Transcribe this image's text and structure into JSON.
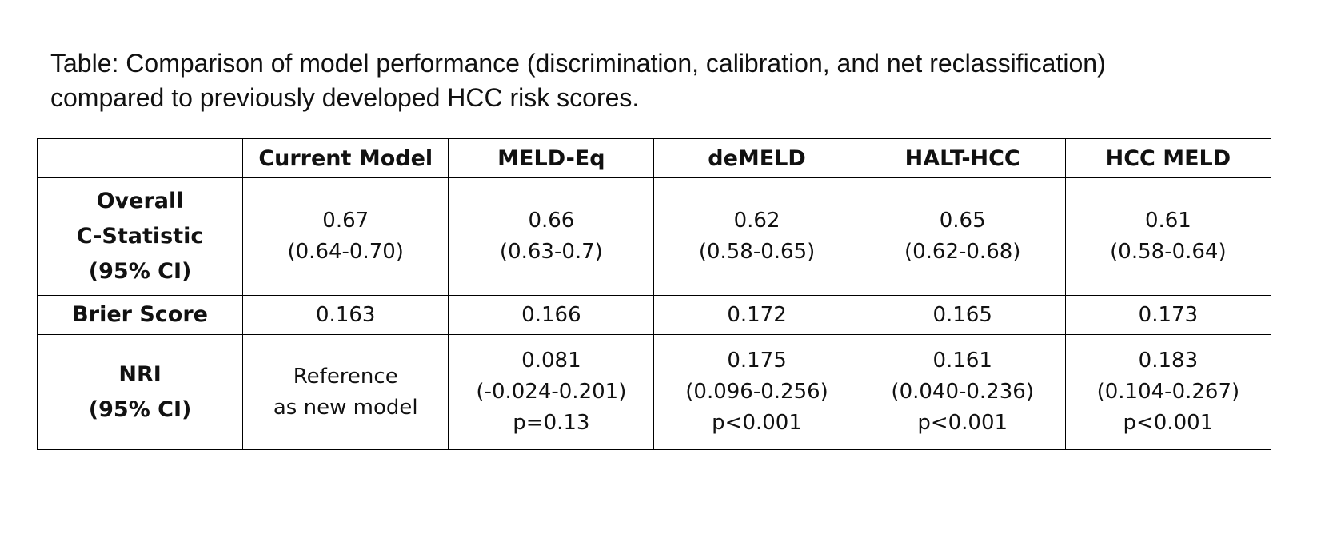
{
  "caption": {
    "line1": "Table: Comparison of model performance (discrimination, calibration, and net reclassification)",
    "line2": "compared to previously developed HCC risk scores."
  },
  "table": {
    "headers": [
      "",
      "Current Model",
      "MELD-Eq",
      "deMELD",
      "HALT-HCC",
      "HCC MELD"
    ],
    "rows": [
      {
        "label": [
          "Overall",
          "C-Statistic",
          "(95% CI)"
        ],
        "cells": [
          [
            "0.67",
            "(0.64-0.70)"
          ],
          [
            "0.66",
            "(0.63-0.7)"
          ],
          [
            "0.62",
            "(0.58-0.65)"
          ],
          [
            "0.65",
            "(0.62-0.68)"
          ],
          [
            "0.61",
            "(0.58-0.64)"
          ]
        ]
      },
      {
        "label": [
          "Brier Score"
        ],
        "cells": [
          [
            "0.163"
          ],
          [
            "0.166"
          ],
          [
            "0.172"
          ],
          [
            "0.165"
          ],
          [
            "0.173"
          ]
        ]
      },
      {
        "label": [
          "NRI",
          "(95% CI)"
        ],
        "cells": [
          [
            "Reference",
            "as new model"
          ],
          [
            "0.081",
            "(-0.024-0.201)",
            "p=0.13"
          ],
          [
            "0.175",
            "(0.096-0.256)",
            "p<0.001"
          ],
          [
            "0.161",
            "(0.040-0.236)",
            "p<0.001"
          ],
          [
            "0.183",
            "(0.104-0.267)",
            "p<0.001"
          ]
        ]
      }
    ]
  }
}
